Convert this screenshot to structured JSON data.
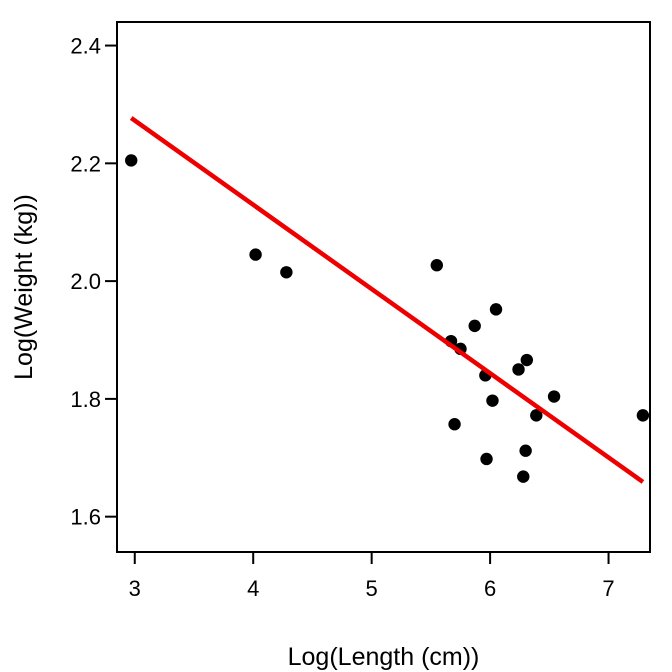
{
  "chart_data": {
    "type": "scatter",
    "title": "",
    "xlabel": "Log(Length (cm))",
    "ylabel": "Log(Weight (kg))",
    "xlim": [
      2.85,
      7.35
    ],
    "ylim": [
      1.54,
      2.44
    ],
    "x_ticks": [
      3,
      4,
      5,
      6,
      7
    ],
    "y_ticks": [
      1.6,
      1.8,
      2.0,
      2.2,
      2.4
    ],
    "x_tick_labels": [
      "3",
      "4",
      "5",
      "6",
      "7"
    ],
    "y_tick_labels": [
      "1.6",
      "1.8",
      "2.0",
      "2.2",
      "2.4"
    ],
    "grid": false,
    "points": [
      {
        "x": 2.97,
        "y": 2.205
      },
      {
        "x": 4.02,
        "y": 2.045
      },
      {
        "x": 4.28,
        "y": 2.015
      },
      {
        "x": 5.55,
        "y": 2.027
      },
      {
        "x": 5.67,
        "y": 1.898
      },
      {
        "x": 5.7,
        "y": 1.757
      },
      {
        "x": 5.75,
        "y": 1.885
      },
      {
        "x": 5.87,
        "y": 1.924
      },
      {
        "x": 5.96,
        "y": 1.84
      },
      {
        "x": 5.97,
        "y": 1.698
      },
      {
        "x": 6.02,
        "y": 1.797
      },
      {
        "x": 6.05,
        "y": 1.952
      },
      {
        "x": 6.24,
        "y": 1.85
      },
      {
        "x": 6.28,
        "y": 1.668
      },
      {
        "x": 6.3,
        "y": 1.712
      },
      {
        "x": 6.31,
        "y": 1.866
      },
      {
        "x": 6.39,
        "y": 1.772
      },
      {
        "x": 6.54,
        "y": 1.804
      },
      {
        "x": 7.29,
        "y": 1.772
      }
    ],
    "fit_line": {
      "x": [
        2.97,
        7.29
      ],
      "y": [
        2.277,
        1.659
      ],
      "color": "#ee0000"
    },
    "point_color": "#000000"
  }
}
